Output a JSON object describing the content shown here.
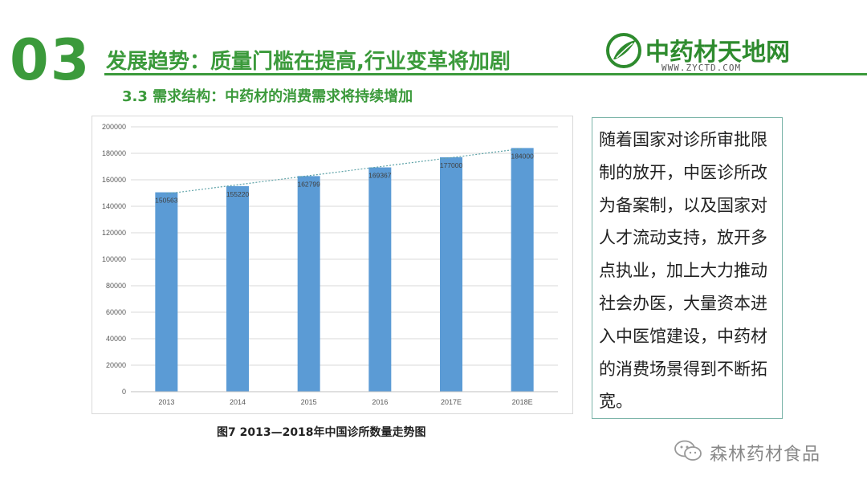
{
  "section": {
    "number": "03"
  },
  "header": {
    "title": "发展趋势：质量门槛在提高,行业变革将加剧",
    "subtitle": "3.3  需求结构：中药材的消费需求将持续增加"
  },
  "logo": {
    "name": "中药材天地网",
    "url": "WWW.ZYCTD.COM"
  },
  "caption": "图7 2013—2018年中国诊所数量走势图",
  "sidebar_text": "随着国家对诊所审批限制的放开，中医诊所改为备案制，以及国家对人才流动支持，放开多点执业，加上大力推动社会办医，大量资本进入中医馆建设，中药材的消费场景得到不断拓宽。",
  "watermark": {
    "text": "森林药材食品",
    "icon": "wechat-icon"
  },
  "colors": {
    "brand_green": "#3b9a3b",
    "bar_blue": "#5b9bd5",
    "trend_line": "#5fa3a8"
  },
  "chart_data": {
    "type": "bar",
    "categories": [
      "2013",
      "2014",
      "2015",
      "2016",
      "2017E",
      "2018E"
    ],
    "values": [
      150563,
      155220,
      162799,
      169367,
      177000,
      184000
    ],
    "data_labels": [
      "150563",
      "155220",
      "162799",
      "169367",
      "177000",
      "184000"
    ],
    "ylim": [
      0,
      200000
    ],
    "yticks": [
      0,
      20000,
      40000,
      60000,
      80000,
      100000,
      120000,
      140000,
      160000,
      180000,
      200000
    ],
    "grid": true,
    "trendline": "linear-dotted",
    "legend": "none"
  }
}
